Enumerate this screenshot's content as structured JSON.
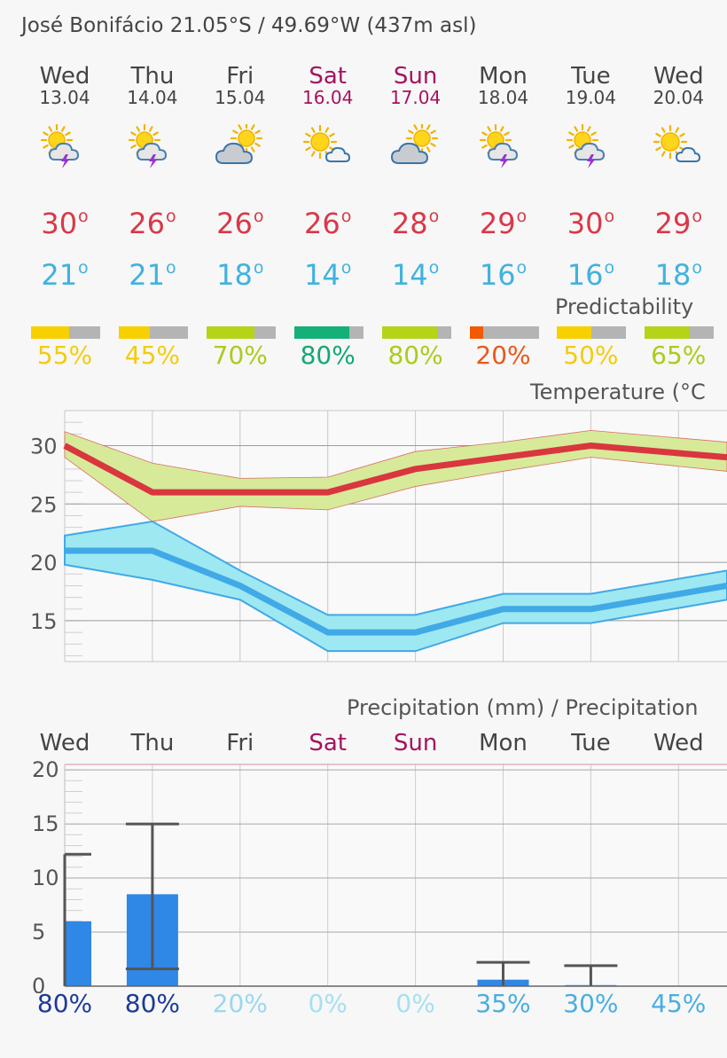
{
  "header": {
    "location": "José Bonifácio  21.05°S / 49.69°W (437m asl)"
  },
  "days": [
    {
      "name": "Wed",
      "date": "13.04",
      "weekend": false,
      "icon": "sun-cloud-thunderstorm-icon",
      "icon_type": "storm",
      "max": "30",
      "min": "21",
      "predictability": "55%",
      "pred_value": 55,
      "pred_color": "#f7d000",
      "pred_text_color": "#f2cc10",
      "precip_mm": 6,
      "precip_max": 12.2,
      "precip_min": 0,
      "precip_prob": "80%",
      "precip_prob_color": "#1c3a9a"
    },
    {
      "name": "Thu",
      "date": "14.04",
      "weekend": false,
      "icon": "sun-cloud-thunderstorm-icon",
      "icon_type": "storm",
      "max": "26",
      "min": "21",
      "predictability": "45%",
      "pred_value": 45,
      "pred_color": "#f7d000",
      "pred_text_color": "#f2cc10",
      "precip_mm": 8.5,
      "precip_max": 15,
      "precip_min": 1.6,
      "precip_prob": "80%",
      "precip_prob_color": "#1c3a9a"
    },
    {
      "name": "Fri",
      "date": "15.04",
      "weekend": false,
      "icon": "sun-behind-cloud-icon",
      "icon_type": "cloudy",
      "max": "26",
      "min": "18",
      "predictability": "70%",
      "pred_value": 70,
      "pred_color": "#b5d418",
      "pred_text_color": "#aacc1a",
      "precip_mm": 0,
      "precip_max": null,
      "precip_min": null,
      "precip_prob": "20%",
      "precip_prob_color": "#9ad8ec"
    },
    {
      "name": "Sat",
      "date": "16.04",
      "weekend": true,
      "icon": "sun-small-cloud-icon",
      "icon_type": "partly",
      "max": "26",
      "min": "14",
      "predictability": "80%",
      "pred_value": 80,
      "pred_color": "#14b077",
      "pred_text_color": "#14a874",
      "precip_mm": 0,
      "precip_max": null,
      "precip_min": null,
      "precip_prob": "0%",
      "precip_prob_color": "#a6e0f0"
    },
    {
      "name": "Sun",
      "date": "17.04",
      "weekend": true,
      "icon": "sun-behind-cloud-icon",
      "icon_type": "cloudy",
      "max": "28",
      "min": "14",
      "predictability": "80%",
      "pred_value": 80,
      "pred_color": "#b5d418",
      "pred_text_color": "#aacc1a",
      "precip_mm": 0,
      "precip_max": null,
      "precip_min": null,
      "precip_prob": "0%",
      "precip_prob_color": "#a6e0f0"
    },
    {
      "name": "Mon",
      "date": "18.04",
      "weekend": false,
      "icon": "sun-cloud-thunderstorm-icon",
      "icon_type": "storm",
      "max": "29",
      "min": "16",
      "predictability": "20%",
      "pred_value": 20,
      "pred_color": "#f25a00",
      "pred_text_color": "#e8581c",
      "precip_mm": 0.6,
      "precip_max": 2.2,
      "precip_min": 0,
      "precip_prob": "35%",
      "precip_prob_color": "#4aaee0"
    },
    {
      "name": "Tue",
      "date": "19.04",
      "weekend": false,
      "icon": "sun-cloud-thunderstorm-icon",
      "icon_type": "storm",
      "max": "30",
      "min": "16",
      "predictability": "50%",
      "pred_value": 50,
      "pred_color": "#f7d000",
      "pred_text_color": "#f2cc10",
      "precip_mm": 0.1,
      "precip_max": 1.9,
      "precip_min": 0,
      "precip_prob": "30%",
      "precip_prob_color": "#4aaee0"
    },
    {
      "name": "Wed",
      "date": "20.04",
      "weekend": false,
      "icon": "sun-small-cloud-icon",
      "icon_type": "partly",
      "max": "29",
      "min": "18",
      "predictability": "65%",
      "pred_value": 65,
      "pred_color": "#b5d418",
      "pred_text_color": "#aacc1a",
      "precip_mm": 0,
      "precip_max": null,
      "precip_min": null,
      "precip_prob": "45%",
      "precip_prob_color": "#4aaee0"
    }
  ],
  "predictability_title": "Predictability",
  "chart_data": [
    {
      "type": "line",
      "title": "Temperature (°C",
      "categories": [
        "Wed",
        "Thu",
        "Fri",
        "Sat",
        "Sun",
        "Mon",
        "Tue",
        "Wed"
      ],
      "ylim": [
        11.5,
        33
      ],
      "yticks": [
        15,
        20,
        25,
        30
      ],
      "grid": true,
      "series": [
        {
          "values": [
            30,
            26,
            26,
            26,
            28,
            29,
            30,
            29
          ],
          "upper": [
            31.2,
            28.5,
            27.2,
            27.3,
            29.5,
            30.3,
            31.3,
            30.3
          ],
          "lower": [
            29,
            23.5,
            24.8,
            24.5,
            26.5,
            27.8,
            29,
            27.8
          ],
          "color": "#d9363e",
          "band_color": "#d6ea9a"
        },
        {
          "values": [
            21,
            21,
            18,
            14,
            14,
            16,
            16,
            18
          ],
          "upper": [
            22.3,
            23.5,
            19.3,
            15.5,
            15.5,
            17.3,
            17.3,
            19.3
          ],
          "lower": [
            19.8,
            18.5,
            16.8,
            12.4,
            12.4,
            14.8,
            14.8,
            16.8
          ],
          "color": "#41a9e6",
          "band_color": "#9ee8f2"
        }
      ]
    },
    {
      "type": "bar",
      "title": "Precipitation (mm) / Precipitation",
      "categories": [
        "Wed",
        "Thu",
        "Fri",
        "Sat",
        "Sun",
        "Mon",
        "Tue",
        "Wed"
      ],
      "values": [
        6,
        8.5,
        0,
        0,
        0,
        0.6,
        0.1,
        0
      ],
      "error_high": [
        12.2,
        15,
        null,
        null,
        null,
        2.2,
        1.9,
        null
      ],
      "error_low": [
        0,
        1.6,
        null,
        null,
        null,
        0,
        0,
        null
      ],
      "ylim": [
        0,
        20.5
      ],
      "yticks": [
        0,
        5,
        10,
        15,
        20
      ],
      "grid": true,
      "bar_color": "#2f87e6"
    }
  ]
}
